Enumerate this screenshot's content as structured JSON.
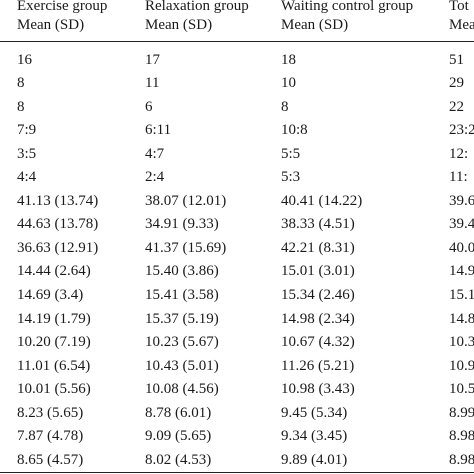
{
  "table": {
    "headers": [
      {
        "line1": "Exercise group",
        "line2": "Mean (SD)"
      },
      {
        "line1": "Relaxation group",
        "line2": "Mean (SD)"
      },
      {
        "line1": "Waiting control group",
        "line2": "Mean (SD)"
      },
      {
        "line1": "Tot",
        "line2": "Mea"
      }
    ],
    "rows": [
      [
        "16",
        "17",
        "18",
        "51"
      ],
      [
        "8",
        "11",
        "10",
        "29"
      ],
      [
        "8",
        "6",
        "8",
        "22"
      ],
      [
        "7:9",
        "6:11",
        "10:8",
        "23:2"
      ],
      [
        "3:5",
        "4:7",
        "5:5",
        "12:"
      ],
      [
        "4:4",
        "2:4",
        "5:3",
        "11:"
      ],
      [
        "41.13 (13.74)",
        "38.07 (12.01)",
        "40.41 (14.22)",
        "39.6"
      ],
      [
        "44.63 (13.78)",
        "34.91 (9.33)",
        "38.33 (4.51)",
        "39.4"
      ],
      [
        "36.63 (12.91)",
        "41.37 (15.69)",
        "42.21 (8.31)",
        "40.0"
      ],
      [
        "14.44 (2.64)",
        "15.40 (3.86)",
        "15.01 (3.01)",
        "14.9"
      ],
      [
        "14.69 (3.4)",
        "15.41 (3.58)",
        "15.34 (2.46)",
        "15.1"
      ],
      [
        "14.19 (1.79)",
        "15.37 (5.19)",
        "14.98 (2.34)",
        "14.8"
      ],
      [
        "10.20 (7.19)",
        "10.23 (5.67)",
        "10.67 (4.32)",
        "10.3"
      ],
      [
        "11.01 (6.54)",
        "10.43 (5.01)",
        "11.26 (5.21)",
        "10.9"
      ],
      [
        "10.01 (5.56)",
        "10.08 (4.56)",
        "10.98 (3.43)",
        "10.5"
      ],
      [
        "8.23 (5.65)",
        "8.78 (6.01)",
        "9.45 (5.34)",
        "8.99"
      ],
      [
        "7.87 (4.78)",
        "9.09 (5.65)",
        "9.34 (3.45)",
        "8.98"
      ],
      [
        "8.65 (4.57)",
        "8.02 (4.53)",
        "9.89 (4.01)",
        "8.98"
      ]
    ]
  }
}
